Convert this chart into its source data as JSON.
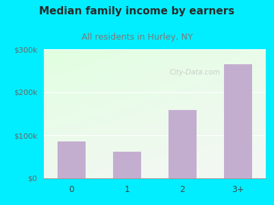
{
  "title": "Median family income by earners",
  "subtitle": "All residents in Hurley, NY",
  "categories": [
    "0",
    "1",
    "2",
    "3+"
  ],
  "values": [
    85000,
    62000,
    158000,
    265000
  ],
  "bar_color": "#c4aed0",
  "title_color": "#2a2a2a",
  "subtitle_color": "#7a7a7a",
  "background_outer": "#00eeff",
  "ylim": [
    0,
    300000
  ],
  "yticks": [
    0,
    100000,
    200000,
    300000
  ],
  "ytick_labels": [
    "$0",
    "$100k",
    "$200k",
    "$300k"
  ],
  "watermark": "City-Data.com",
  "title_fontsize": 11,
  "subtitle_fontsize": 9,
  "tick_fontsize": 8
}
